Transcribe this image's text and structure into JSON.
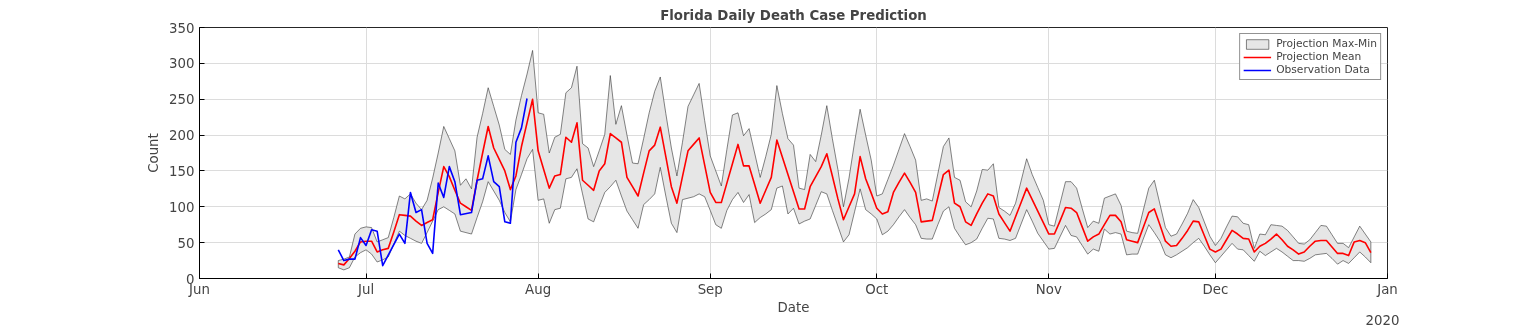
{
  "chart_data": {
    "type": "line",
    "title": "Florida Daily Death Case Prediction",
    "xlabel": "Date",
    "ylabel": "Count",
    "xlim": [
      "2020-06-01",
      "2021-01-01"
    ],
    "xticks": [
      {
        "value": "2020-06-01",
        "label": "Jun"
      },
      {
        "value": "2020-07-01",
        "label": "Jul"
      },
      {
        "value": "2020-08-01",
        "label": "Aug"
      },
      {
        "value": "2020-09-01",
        "label": "Sep"
      },
      {
        "value": "2020-10-01",
        "label": "Oct"
      },
      {
        "value": "2020-11-01",
        "label": "Nov"
      },
      {
        "value": "2020-12-01",
        "label": "Dec"
      },
      {
        "value": "2021-01-01",
        "label": "Jan"
      }
    ],
    "ylim": [
      0,
      350
    ],
    "yticks": [
      0,
      50,
      100,
      150,
      200,
      250,
      300,
      350
    ],
    "grid": true,
    "legend": "top right",
    "annotations": [
      "2020"
    ],
    "series": [
      {
        "name": "Projection Max-Min",
        "type": "area",
        "color": "#e6e6e6"
      },
      {
        "name": "Projection Mean",
        "color": "#ff0000",
        "x": [
          "2020-06-26",
          "2020-06-27",
          "2020-06-28",
          "2020-06-29",
          "2020-06-30",
          "2020-07-01",
          "2020-07-02",
          "2020-07-03",
          "2020-07-04",
          "2020-07-05",
          "2020-07-06",
          "2020-07-07",
          "2020-07-08",
          "2020-07-09",
          "2020-07-10",
          "2020-07-11",
          "2020-07-12",
          "2020-07-13",
          "2020-07-14",
          "2020-07-15",
          "2020-07-16",
          "2020-07-17",
          "2020-07-18",
          "2020-07-19",
          "2020-07-20",
          "2020-07-21",
          "2020-07-22",
          "2020-07-23",
          "2020-07-24",
          "2020-07-25",
          "2020-07-26",
          "2020-07-27",
          "2020-07-28",
          "2020-07-29",
          "2020-07-30",
          "2020-07-31",
          "2020-08-01",
          "2020-08-02",
          "2020-08-03",
          "2020-08-04",
          "2020-08-05",
          "2020-08-06",
          "2020-08-07",
          "2020-08-08",
          "2020-08-09",
          "2020-08-10",
          "2020-08-11",
          "2020-08-12",
          "2020-08-13",
          "2020-08-14",
          "2020-08-15",
          "2020-08-16",
          "2020-08-17",
          "2020-08-18",
          "2020-08-19",
          "2020-08-20",
          "2020-08-21",
          "2020-08-22",
          "2020-08-23",
          "2020-08-24",
          "2020-08-25",
          "2020-08-26",
          "2020-08-27",
          "2020-08-28",
          "2020-08-29",
          "2020-08-30",
          "2020-08-31",
          "2020-09-01",
          "2020-09-02",
          "2020-09-03",
          "2020-09-04",
          "2020-09-05",
          "2020-09-06",
          "2020-09-07",
          "2020-09-08",
          "2020-09-09",
          "2020-09-10",
          "2020-09-11",
          "2020-09-12",
          "2020-09-13",
          "2020-09-14",
          "2020-09-15",
          "2020-09-16",
          "2020-09-17",
          "2020-09-18",
          "2020-09-19",
          "2020-09-20",
          "2020-09-21",
          "2020-09-22",
          "2020-09-23",
          "2020-09-24",
          "2020-09-25",
          "2020-09-26",
          "2020-09-27",
          "2020-09-28",
          "2020-09-29",
          "2020-09-30",
          "2020-10-01",
          "2020-10-02",
          "2020-10-03",
          "2020-10-04",
          "2020-10-05",
          "2020-10-06",
          "2020-10-07",
          "2020-10-08",
          "2020-10-09",
          "2020-10-10",
          "2020-10-11",
          "2020-10-12",
          "2020-10-13",
          "2020-10-14",
          "2020-10-15",
          "2020-10-16",
          "2020-10-17",
          "2020-10-18",
          "2020-10-19",
          "2020-10-20",
          "2020-10-21",
          "2020-10-22",
          "2020-10-23",
          "2020-10-24",
          "2020-10-25",
          "2020-10-26",
          "2020-10-27",
          "2020-10-28",
          "2020-10-29",
          "2020-10-30",
          "2020-10-31",
          "2020-11-01",
          "2020-11-02",
          "2020-11-03",
          "2020-11-04",
          "2020-11-05",
          "2020-11-06",
          "2020-11-07",
          "2020-11-08",
          "2020-11-09",
          "2020-11-10",
          "2020-11-11",
          "2020-11-12",
          "2020-11-13",
          "2020-11-14",
          "2020-11-15",
          "2020-11-16",
          "2020-11-17",
          "2020-11-18",
          "2020-11-19",
          "2020-11-20",
          "2020-11-21",
          "2020-11-22",
          "2020-11-23",
          "2020-11-24",
          "2020-11-25",
          "2020-11-26",
          "2020-11-27",
          "2020-11-28",
          "2020-11-29",
          "2020-11-30",
          "2020-12-01",
          "2020-12-02",
          "2020-12-03",
          "2020-12-04",
          "2020-12-05",
          "2020-12-06",
          "2020-12-07",
          "2020-12-08",
          "2020-12-09",
          "2020-12-10",
          "2020-12-11",
          "2020-12-12",
          "2020-12-13",
          "2020-12-14",
          "2020-12-15",
          "2020-12-16",
          "2020-12-17",
          "2020-12-18",
          "2020-12-19",
          "2020-12-20",
          "2020-12-21",
          "2020-12-22",
          "2020-12-23",
          "2020-12-24",
          "2020-12-25",
          "2020-12-26",
          "2020-12-27",
          "2020-12-28",
          "2020-12-29"
        ],
        "values": [
          21,
          19,
          28,
          38,
          51,
          52,
          52,
          37,
          40,
          42,
          65,
          89,
          88,
          87,
          80,
          74,
          78,
          82,
          120,
          156,
          142,
          123,
          105,
          100,
          95,
          137,
          175,
          212,
          182,
          166,
          150,
          124,
          143,
          184,
          217,
          250,
          178,
          152,
          126,
          143,
          145,
          197,
          190,
          217,
          137,
          130,
          123,
          150,
          160,
          202,
          196,
          190,
          141,
          128,
          115,
          147,
          178,
          186,
          211,
          170,
          128,
          105,
          142,
          178,
          187,
          196,
          158,
          120,
          106,
          106,
          133,
          160,
          187,
          157,
          157,
          131,
          105,
          123,
          141,
          193,
          169,
          145,
          121,
          97,
          97,
          128,
          142,
          156,
          174,
          143,
          111,
          82,
          100,
          118,
          170,
          139,
          119,
          98,
          90,
          93,
          120,
          134,
          147,
          134,
          120,
          79,
          80,
          81,
          113,
          145,
          151,
          105,
          100,
          79,
          74,
          90,
          105,
          118,
          115,
          90,
          78,
          66,
          86,
          106,
          126,
          110,
          94,
          78,
          62,
          62,
          80,
          99,
          98,
          92,
          72,
          52,
          58,
          62,
          75,
          88,
          88,
          79,
          54,
          52,
          50,
          71,
          92,
          97,
          75,
          52,
          45,
          46,
          56,
          67,
          80,
          79,
          60,
          41,
          37,
          41,
          54,
          67,
          62,
          56,
          55,
          37,
          45,
          49,
          55,
          62,
          54,
          45,
          40,
          34,
          37,
          45,
          52,
          53,
          53,
          44,
          35,
          35,
          32,
          51,
          53,
          50,
          36
        ],
        "upper": [
          25,
          27,
          30,
          62,
          70,
          72,
          71,
          51,
          54,
          57,
          85,
          115,
          111,
          118,
          105,
          96,
          109,
          140,
          175,
          212,
          195,
          178,
          130,
          139,
          125,
          197,
          230,
          266,
          240,
          214,
          180,
          173,
          221,
          255,
          285,
          318,
          231,
          229,
          175,
          197,
          201,
          259,
          266,
          296,
          188,
          182,
          156,
          178,
          201,
          283,
          215,
          241,
          200,
          161,
          160,
          195,
          231,
          261,
          281,
          230,
          182,
          143,
          190,
          240,
          256,
          272,
          220,
          171,
          150,
          129,
          180,
          228,
          231,
          199,
          209,
          175,
          141,
          170,
          201,
          269,
          230,
          195,
          186,
          126,
          124,
          173,
          163,
          200,
          241,
          195,
          152,
          100,
          140,
          190,
          236,
          200,
          165,
          115,
          118,
          138,
          158,
          180,
          202,
          184,
          165,
          109,
          111,
          108,
          146,
          184,
          196,
          141,
          137,
          107,
          100,
          122,
          152,
          151,
          160,
          99,
          94,
          88,
          105,
          136,
          167,
          145,
          127,
          109,
          75,
          73,
          104,
          135,
          135,
          126,
          98,
          71,
          80,
          77,
          112,
          115,
          118,
          102,
          66,
          64,
          63,
          95,
          126,
          137,
          104,
          71,
          59,
          62,
          76,
          91,
          110,
          99,
          79,
          59,
          46,
          56,
          72,
          87,
          86,
          77,
          75,
          42,
          62,
          61,
          75,
          74,
          73,
          67,
          58,
          49,
          48,
          54,
          64,
          74,
          73,
          61,
          49,
          49,
          43,
          58,
          73,
          62,
          51
        ],
        "lower": [
          15,
          12,
          15,
          30,
          36,
          40,
          34,
          23,
          26,
          30,
          48,
          66,
          60,
          56,
          52,
          49,
          64,
          80,
          96,
          100,
          95,
          90,
          66,
          64,
          62,
          85,
          107,
          135,
          122,
          109,
          92,
          79,
          124,
          145,
          167,
          180,
          109,
          111,
          77,
          96,
          98,
          139,
          141,
          153,
          118,
          83,
          79,
          100,
          120,
          128,
          137,
          115,
          94,
          82,
          70,
          103,
          110,
          118,
          155,
          115,
          77,
          64,
          110,
          112,
          114,
          118,
          114,
          95,
          75,
          70,
          95,
          110,
          120,
          106,
          117,
          78,
          85,
          90,
          96,
          126,
          129,
          90,
          98,
          76,
          80,
          83,
          102,
          121,
          118,
          95,
          73,
          51,
          61,
          93,
          125,
          96,
          90,
          83,
          61,
          66,
          75,
          86,
          96,
          85,
          75,
          56,
          55,
          55,
          75,
          94,
          100,
          70,
          58,
          47,
          50,
          55,
          70,
          84,
          83,
          56,
          55,
          53,
          56,
          76,
          96,
          80,
          63,
          52,
          41,
          42,
          58,
          74,
          60,
          58,
          46,
          34,
          41,
          38,
          69,
          62,
          64,
          62,
          33,
          34,
          34,
          55,
          75,
          64,
          52,
          33,
          29,
          33,
          38,
          43,
          50,
          56,
          45,
          33,
          22,
          31,
          40,
          49,
          41,
          40,
          32,
          24,
          38,
          32,
          37,
          42,
          37,
          31,
          25,
          25,
          24,
          28,
          33,
          34,
          35,
          28,
          20,
          25,
          21,
          29,
          37,
          30,
          22
        ]
      },
      {
        "name": "Observation Data",
        "color": "#0000ff",
        "x": [
          "2020-06-26",
          "2020-06-27",
          "2020-06-28",
          "2020-06-29",
          "2020-06-30",
          "2020-07-01",
          "2020-07-02",
          "2020-07-03",
          "2020-07-04",
          "2020-07-07",
          "2020-07-08",
          "2020-07-09",
          "2020-07-10",
          "2020-07-11",
          "2020-07-12",
          "2020-07-13",
          "2020-07-14",
          "2020-07-15",
          "2020-07-16",
          "2020-07-17",
          "2020-07-18",
          "2020-07-20",
          "2020-07-21",
          "2020-07-22",
          "2020-07-23",
          "2020-07-24",
          "2020-07-25",
          "2020-07-26",
          "2020-07-27",
          "2020-07-28",
          "2020-07-29",
          "2020-07-30"
        ],
        "values": [
          40,
          25,
          27,
          27,
          57,
          46,
          68,
          66,
          18,
          62,
          49,
          120,
          92,
          96,
          49,
          35,
          133,
          113,
          156,
          135,
          89,
          92,
          137,
          139,
          171,
          135,
          128,
          79,
          77,
          190,
          210,
          251
        ]
      }
    ]
  }
}
